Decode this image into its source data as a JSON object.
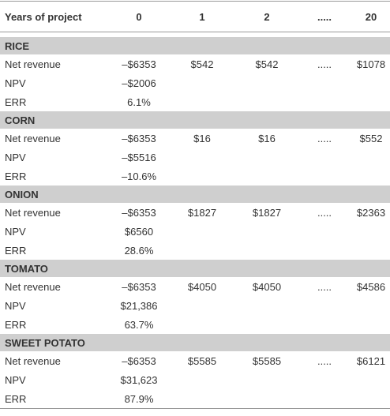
{
  "header": [
    "Years of project",
    "0",
    "1",
    "2",
    ".....",
    "20"
  ],
  "sections": [
    {
      "title": "RICE",
      "rows": [
        [
          "Net revenue",
          "–$6353",
          "$542",
          "$542",
          ".....",
          "$1078"
        ],
        [
          "NPV",
          "–$2006"
        ],
        [
          "ERR",
          "6.1%"
        ]
      ]
    },
    {
      "title": "CORN",
      "rows": [
        [
          "Net revenue",
          "–$6353",
          "$16",
          "$16",
          ".....",
          "$552"
        ],
        [
          "NPV",
          "–$5516"
        ],
        [
          "ERR",
          "–10.6%"
        ]
      ]
    },
    {
      "title": "ONION",
      "rows": [
        [
          "Net revenue",
          "–$6353",
          "$1827",
          "$1827",
          ".....",
          "$2363"
        ],
        [
          "NPV",
          "$6560"
        ],
        [
          "ERR",
          "28.6%"
        ]
      ]
    },
    {
      "title": "TOMATO",
      "rows": [
        [
          "Net revenue",
          "–$6353",
          "$4050",
          "$4050",
          ".....",
          "$4586"
        ],
        [
          "NPV",
          "$21,386"
        ],
        [
          "ERR",
          "63.7%"
        ]
      ]
    },
    {
      "title": "SWEET POTATO",
      "rows": [
        [
          "Net revenue",
          "–$6353",
          "$5585",
          "$5585",
          ".....",
          "$6121"
        ],
        [
          "NPV",
          "$31,623"
        ],
        [
          "ERR",
          "87.9%"
        ]
      ]
    }
  ]
}
